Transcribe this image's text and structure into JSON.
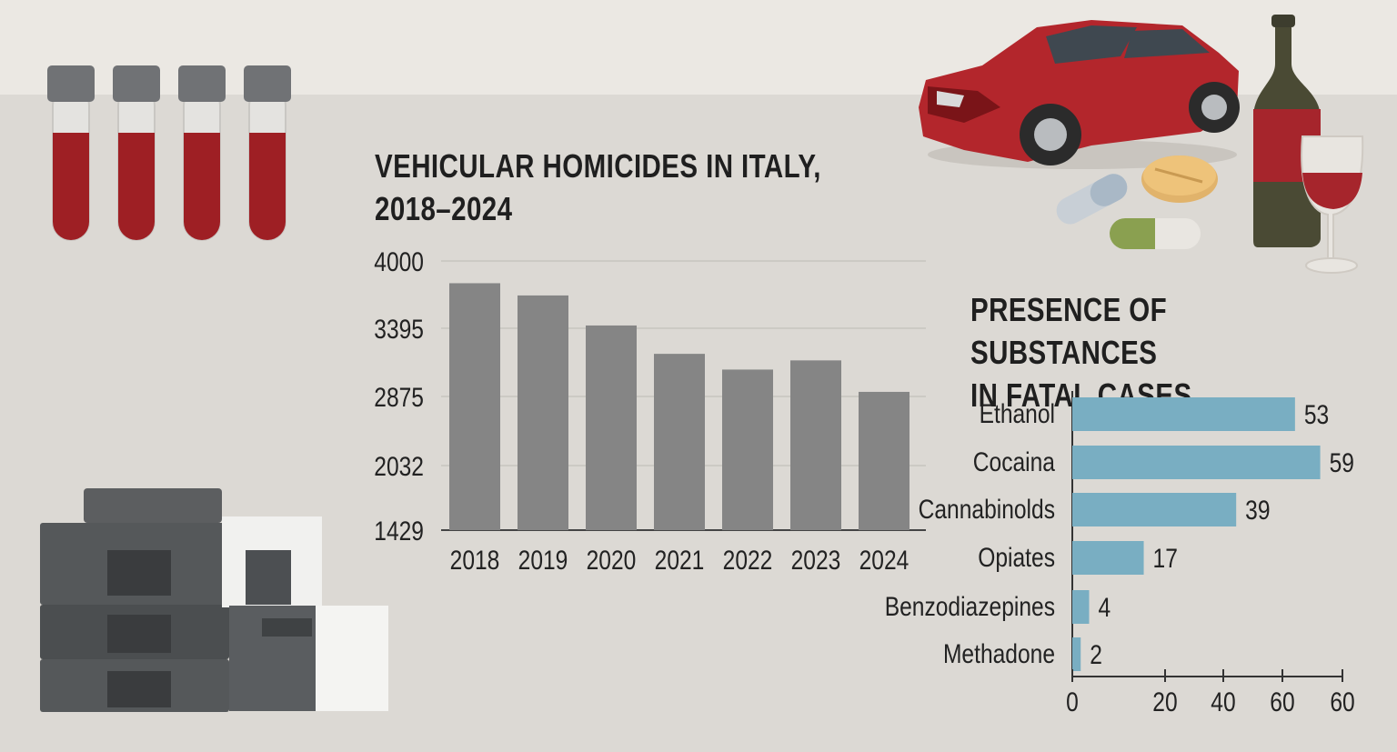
{
  "colors": {
    "background": "#dcd9d4",
    "top_band": "#ebe8e3",
    "bar_fill": "#858585",
    "hbar_fill": "#79aec2",
    "tube_blood": "#9e1f24",
    "tube_cap": "#707275",
    "car_red": "#b3262c"
  },
  "icons": {
    "tubes": "blood-sample-tubes-icon",
    "car": "crashed-car-icon",
    "pills": "pills-icon",
    "bottle": "wine-bottle-icon",
    "glass": "wine-glass-icon",
    "instrument": "lab-analyzer-icon"
  },
  "chart_data": [
    {
      "type": "bar",
      "title": [
        "VEHICULAR HOMICIDES IN ITALY,",
        "2018–2024"
      ],
      "xlabel": "",
      "ylabel": "",
      "categories": [
        "2018",
        "2019",
        "2020",
        "2021",
        "2022",
        "2023",
        "2024"
      ],
      "values": [
        3800,
        3690,
        3420,
        3200,
        3080,
        3150,
        2910
      ],
      "y_ticks": [
        1429,
        2032,
        2875,
        3395,
        4000
      ],
      "ylim": [
        1429,
        4000
      ],
      "grid": true
    },
    {
      "type": "bar",
      "orientation": "horizontal",
      "title": [
        "PRESENCE OF SUBSTANCES",
        "IN FATAL CASES"
      ],
      "categories": [
        "Ethanol",
        "Cocaina",
        "Cannabinolds",
        "Opiates",
        "Benzodiazepines",
        "Methadone"
      ],
      "values": [
        53,
        59,
        39,
        17,
        4,
        2
      ],
      "value_labels": [
        "53",
        "59",
        "39",
        "17",
        "4",
        "2"
      ],
      "x_ticks": [
        "0",
        "20",
        "40",
        "60",
        "60"
      ],
      "xlim": [
        0,
        60
      ],
      "grid": false
    }
  ]
}
